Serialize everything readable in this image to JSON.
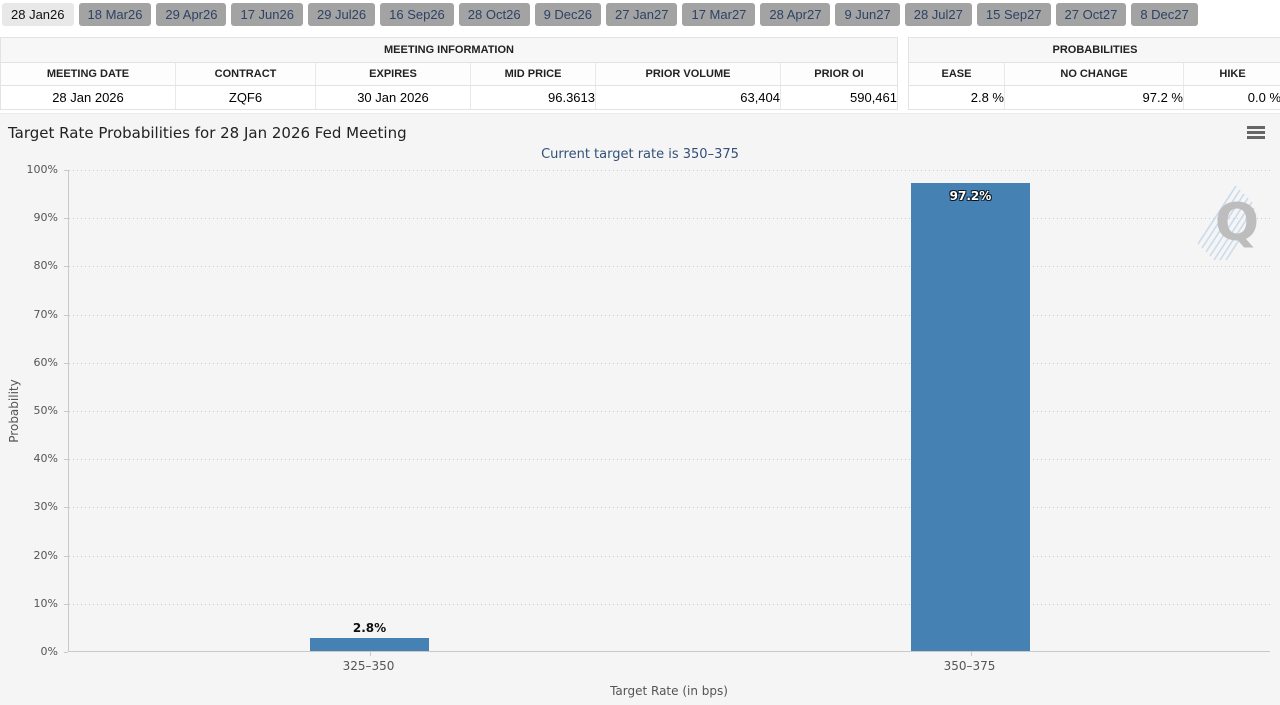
{
  "tabs": {
    "items": [
      {
        "label": "28 Jan26",
        "active": true
      },
      {
        "label": "18 Mar26",
        "active": false
      },
      {
        "label": "29 Apr26",
        "active": false
      },
      {
        "label": "17 Jun26",
        "active": false
      },
      {
        "label": "29 Jul26",
        "active": false
      },
      {
        "label": "16 Sep26",
        "active": false
      },
      {
        "label": "28 Oct26",
        "active": false
      },
      {
        "label": "9 Dec26",
        "active": false
      },
      {
        "label": "27 Jan27",
        "active": false
      },
      {
        "label": "17 Mar27",
        "active": false
      },
      {
        "label": "28 Apr27",
        "active": false
      },
      {
        "label": "9 Jun27",
        "active": false
      },
      {
        "label": "28 Jul27",
        "active": false
      },
      {
        "label": "15 Sep27",
        "active": false
      },
      {
        "label": "27 Oct27",
        "active": false
      },
      {
        "label": "8 Dec27",
        "active": false
      }
    ]
  },
  "meeting_info": {
    "title": "MEETING INFORMATION",
    "columns": [
      "MEETING DATE",
      "CONTRACT",
      "EXPIRES",
      "MID PRICE",
      "PRIOR VOLUME",
      "PRIOR OI"
    ],
    "row": [
      "28 Jan 2026",
      "ZQF6",
      "30 Jan 2026",
      "96.3613",
      "63,404",
      "590,461"
    ]
  },
  "probabilities": {
    "title": "PROBABILITIES",
    "columns": [
      "EASE",
      "NO CHANGE",
      "HIKE"
    ],
    "row": [
      "2.8 %",
      "97.2 %",
      "0.0 %"
    ]
  },
  "chart": {
    "menu_icon": "hamburger-icon",
    "watermark_letter": "Q"
  },
  "chart_data": {
    "type": "bar",
    "title": "Target Rate Probabilities for 28 Jan 2026 Fed Meeting",
    "subtitle": "Current target rate is 350–375",
    "categories": [
      "325–350",
      "350–375"
    ],
    "values": [
      2.8,
      97.2
    ],
    "labels": [
      "2.8%",
      "97.2%"
    ],
    "xlabel": "Target Rate (in bps)",
    "ylabel": "Probability",
    "ylim": [
      0,
      100
    ],
    "ytick_step": 10,
    "ytick_suffix": "%",
    "grid": "horizontal-dotted",
    "legend": false,
    "bar_color": "#4581b3"
  }
}
